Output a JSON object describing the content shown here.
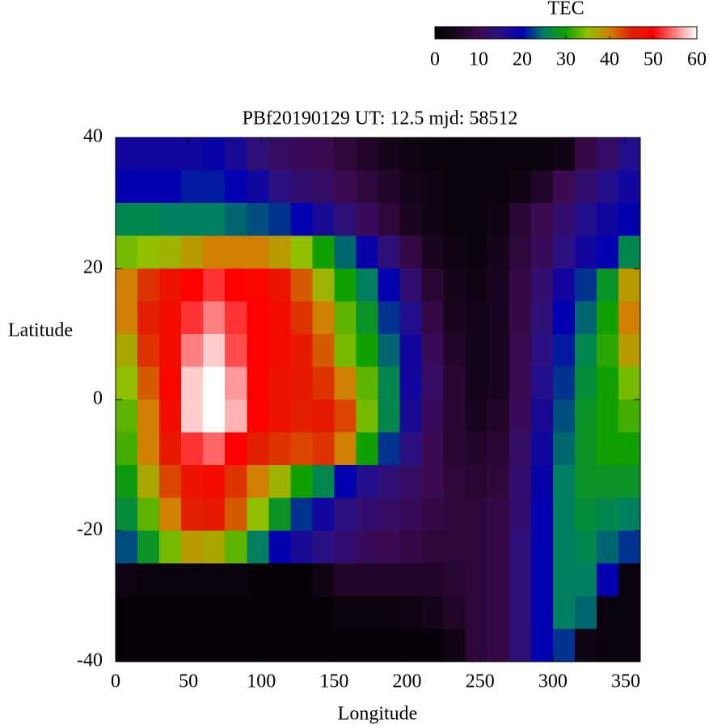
{
  "chart_data": {
    "type": "heatmap",
    "title": "PBf20190129  UT: 12.5  mjd: 58512",
    "xlabel": "Longitude",
    "ylabel": "Latitude",
    "colorbar_title": "TEC",
    "xlim": [
      0,
      360
    ],
    "xticks": [
      0,
      50,
      100,
      150,
      200,
      250,
      300,
      350
    ],
    "ylim": [
      -40,
      40
    ],
    "yticks": [
      -40,
      -20,
      0,
      20,
      40
    ],
    "zlim": [
      0,
      60
    ],
    "zticks": [
      0,
      10,
      20,
      30,
      40,
      50,
      60
    ],
    "colorscale": [
      "#000000",
      "#1a0520",
      "#3c0a50",
      "#2a1080",
      "#0000b0",
      "#008060",
      "#10a000",
      "#90c000",
      "#d08000",
      "#e02000",
      "#ff0000",
      "#ff8080",
      "#ffffff"
    ],
    "x": [
      7.5,
      22.5,
      37.5,
      52.5,
      67.5,
      82.5,
      97.5,
      112.5,
      127.5,
      142.5,
      157.5,
      172.5,
      187.5,
      202.5,
      217.5,
      232.5,
      247.5,
      262.5,
      277.5,
      292.5,
      307.5,
      322.5,
      337.5,
      352.5
    ],
    "y": [
      37.5,
      32.5,
      27.5,
      22.5,
      17.5,
      12.5,
      7.5,
      2.5,
      -2.5,
      -7.5,
      -12.5,
      -17.5,
      -22.5,
      -27.5,
      -32.5,
      -37.5
    ],
    "z": [
      [
        18,
        18,
        18,
        18,
        19,
        17,
        14,
        12,
        11,
        10,
        8,
        6,
        4,
        3,
        2,
        2,
        2,
        2,
        2,
        2,
        3,
        9,
        12,
        16
      ],
      [
        20,
        20,
        20,
        21,
        21,
        20,
        18,
        15,
        13,
        12,
        10,
        8,
        6,
        4,
        3,
        2,
        2,
        2,
        3,
        6,
        10,
        13,
        16,
        18
      ],
      [
        26,
        26,
        25,
        25,
        25,
        24,
        23,
        22,
        20,
        17,
        14,
        11,
        8,
        5,
        3,
        2,
        2,
        3,
        7,
        10,
        13,
        16,
        18,
        20
      ],
      [
        34,
        35,
        36,
        38,
        40,
        40,
        40,
        38,
        35,
        30,
        24,
        19,
        14,
        9,
        5,
        3,
        2,
        4,
        8,
        11,
        15,
        18,
        20,
        26
      ],
      [
        40,
        44,
        47,
        50,
        52,
        50,
        49,
        47,
        42,
        36,
        30,
        25,
        20,
        13,
        7,
        4,
        3,
        5,
        9,
        13,
        18,
        22,
        28,
        38
      ],
      [
        40,
        45,
        48,
        52,
        55,
        52,
        50,
        48,
        44,
        40,
        33,
        28,
        22,
        16,
        9,
        5,
        4,
        5,
        9,
        14,
        20,
        24,
        30,
        40
      ],
      [
        37,
        44,
        48,
        55,
        58,
        53,
        50,
        48,
        46,
        42,
        34,
        30,
        24,
        18,
        11,
        6,
        4,
        5,
        10,
        15,
        21,
        26,
        31,
        38
      ],
      [
        35,
        42,
        49,
        58,
        60,
        56,
        50,
        47,
        46,
        44,
        40,
        33,
        26,
        18,
        12,
        7,
        4,
        5,
        10,
        16,
        22,
        27,
        30,
        34
      ],
      [
        33,
        40,
        48,
        58,
        60,
        57,
        50,
        47,
        45,
        46,
        43,
        34,
        26,
        17,
        11,
        7,
        5,
        6,
        11,
        17,
        23,
        28,
        30,
        32
      ],
      [
        32,
        40,
        46,
        52,
        54,
        50,
        45,
        44,
        43,
        44,
        40,
        30,
        22,
        15,
        10,
        7,
        6,
        7,
        12,
        18,
        24,
        28,
        30,
        30
      ],
      [
        29,
        37,
        43,
        47,
        48,
        44,
        40,
        36,
        30,
        26,
        20,
        16,
        14,
        12,
        10,
        8,
        7,
        8,
        13,
        19,
        25,
        28,
        28,
        28
      ],
      [
        27,
        33,
        40,
        45,
        46,
        42,
        35,
        28,
        22,
        18,
        15,
        13,
        12,
        11,
        9,
        8,
        8,
        9,
        13,
        20,
        25,
        27,
        26,
        25
      ],
      [
        23,
        28,
        34,
        38,
        37,
        33,
        25,
        20,
        17,
        15,
        13,
        11,
        10,
        9,
        8,
        8,
        8,
        9,
        14,
        20,
        25,
        26,
        24,
        22
      ],
      [
        3,
        2,
        2,
        2,
        2,
        2,
        1,
        1,
        1,
        3,
        6,
        6,
        6,
        6,
        6,
        7,
        8,
        9,
        14,
        20,
        25,
        25,
        20,
        2
      ],
      [
        1,
        1,
        1,
        1,
        1,
        1,
        1,
        1,
        1,
        1,
        2,
        2,
        2,
        3,
        4,
        6,
        8,
        9,
        14,
        20,
        25,
        24,
        2,
        2
      ],
      [
        1,
        1,
        1,
        1,
        1,
        1,
        1,
        1,
        1,
        1,
        1,
        1,
        1,
        1,
        1,
        3,
        8,
        9,
        14,
        20,
        22,
        3,
        2,
        2
      ]
    ]
  }
}
